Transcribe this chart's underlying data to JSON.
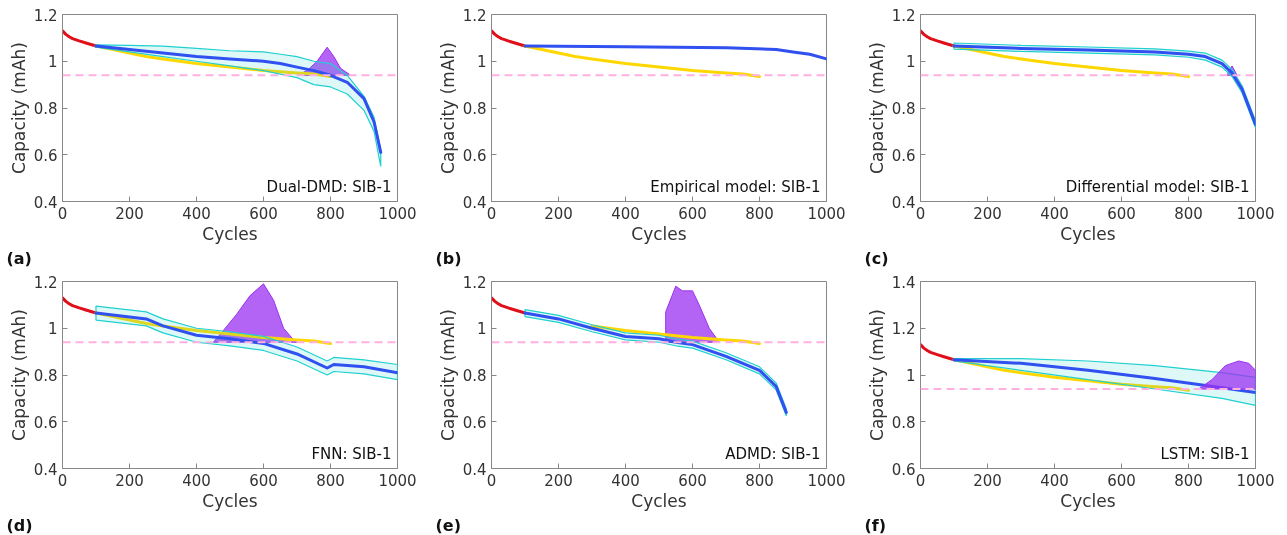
{
  "chart_data": [
    {
      "type": "line",
      "xlabel": "Cycles",
      "ylabel": "Capacity (mAh)",
      "xlim": [
        0,
        1000
      ],
      "ylim": [
        0.4,
        1.2
      ],
      "xticks": [
        0,
        200,
        400,
        600,
        800,
        1000
      ],
      "yticks": [
        0.4,
        0.6,
        0.8,
        1,
        1.2
      ],
      "annotations": [
        "Dual-DMD: SIB-1",
        "(a)"
      ],
      "ref_lines": [
        {
          "axis": "y",
          "value": 0.94,
          "color": "#ffb0e0",
          "line_style": "dashed"
        }
      ],
      "series": [
        {
          "type": "area",
          "color": "#9b30f0",
          "x": [
            700,
            730,
            760,
            790,
            810,
            830,
            860
          ],
          "values": [
            0.94,
            0.96,
            1.0,
            1.06,
            1.02,
            0.97,
            0.94
          ]
        },
        {
          "color": "#e0101a",
          "x": [
            0,
            10,
            20,
            30,
            50,
            70,
            100
          ],
          "values": [
            1.13,
            1.115,
            1.105,
            1.097,
            1.087,
            1.078,
            1.065
          ]
        },
        {
          "color": "#ffd700",
          "x": [
            100,
            150,
            200,
            250,
            300,
            400,
            500,
            600,
            650,
            700,
            750,
            800
          ],
          "values": [
            1.065,
            1.05,
            1.035,
            1.02,
            1.01,
            0.99,
            0.975,
            0.96,
            0.955,
            0.95,
            0.945,
            0.935
          ]
        },
        {
          "color": "#3050f0",
          "x": [
            100,
            200,
            300,
            400,
            500,
            600,
            650,
            700,
            750,
            800,
            850,
            900,
            930,
            950
          ],
          "values": [
            1.065,
            1.05,
            1.035,
            1.02,
            1.01,
            1.0,
            0.99,
            0.975,
            0.96,
            0.94,
            0.91,
            0.84,
            0.74,
            0.61
          ],
          "lower": [
            1.06,
            1.04,
            1.02,
            1.0,
            0.98,
            0.96,
            0.945,
            0.93,
            0.9,
            0.89,
            0.86,
            0.79,
            0.7,
            0.55
          ],
          "upper": [
            1.07,
            1.068,
            1.065,
            1.055,
            1.045,
            1.04,
            1.03,
            1.02,
            1.0,
            0.99,
            0.94,
            0.85,
            0.76,
            0.62
          ]
        }
      ]
    },
    {
      "type": "line",
      "xlabel": "Cycles",
      "ylabel": "Capacity (mAh)",
      "xlim": [
        0,
        1000
      ],
      "ylim": [
        0.4,
        1.2
      ],
      "xticks": [
        0,
        200,
        400,
        600,
        800,
        1000
      ],
      "yticks": [
        0.4,
        0.6,
        0.8,
        1,
        1.2
      ],
      "annotations": [
        "Empirical model: SIB-1",
        "(b)"
      ],
      "ref_lines": [
        {
          "axis": "y",
          "value": 0.94,
          "color": "#ffb0e0",
          "line_style": "dashed"
        }
      ],
      "series": [
        {
          "color": "#e0101a",
          "x": [
            0,
            10,
            20,
            30,
            50,
            70,
            100
          ],
          "values": [
            1.13,
            1.115,
            1.105,
            1.097,
            1.087,
            1.078,
            1.065
          ]
        },
        {
          "color": "#ffd700",
          "x": [
            100,
            150,
            200,
            250,
            300,
            400,
            500,
            600,
            650,
            700,
            750,
            800
          ],
          "values": [
            1.065,
            1.05,
            1.035,
            1.02,
            1.01,
            0.99,
            0.975,
            0.96,
            0.955,
            0.95,
            0.945,
            0.935
          ]
        },
        {
          "color": "#3050f0",
          "x": [
            100,
            400,
            700,
            850,
            900,
            950,
            1000
          ],
          "values": [
            1.065,
            1.062,
            1.058,
            1.05,
            1.04,
            1.03,
            1.01
          ]
        }
      ]
    },
    {
      "type": "line",
      "xlabel": "Cycles",
      "ylabel": "Capacity (mAh)",
      "xlim": [
        0,
        1000
      ],
      "ylim": [
        0.4,
        1.2
      ],
      "xticks": [
        0,
        200,
        400,
        600,
        800,
        1000
      ],
      "yticks": [
        0.4,
        0.6,
        0.8,
        1,
        1.2
      ],
      "annotations": [
        "Differential model: SIB-1",
        "(c)"
      ],
      "ref_lines": [
        {
          "axis": "y",
          "value": 0.94,
          "color": "#ffb0e0",
          "line_style": "dashed"
        }
      ],
      "series": [
        {
          "type": "area",
          "color": "#9b30f0",
          "x": [
            915,
            930,
            945
          ],
          "values": [
            0.94,
            0.98,
            0.94
          ]
        },
        {
          "color": "#e0101a",
          "x": [
            0,
            10,
            20,
            30,
            50,
            70,
            100
          ],
          "values": [
            1.13,
            1.115,
            1.105,
            1.097,
            1.087,
            1.078,
            1.065
          ]
        },
        {
          "color": "#ffd700",
          "x": [
            100,
            150,
            200,
            250,
            300,
            400,
            500,
            600,
            650,
            700,
            750,
            800
          ],
          "values": [
            1.065,
            1.05,
            1.035,
            1.02,
            1.01,
            0.99,
            0.975,
            0.96,
            0.955,
            0.95,
            0.945,
            0.935
          ]
        },
        {
          "color": "#3050f0",
          "x": [
            100,
            300,
            500,
            700,
            800,
            850,
            900,
            930,
            960,
            1000
          ],
          "values": [
            1.065,
            1.055,
            1.048,
            1.04,
            1.03,
            1.02,
            0.99,
            0.95,
            0.88,
            0.73
          ],
          "lower": [
            1.052,
            1.042,
            1.035,
            1.027,
            1.017,
            1.005,
            0.975,
            0.935,
            0.865,
            0.715
          ],
          "upper": [
            1.078,
            1.068,
            1.061,
            1.053,
            1.043,
            1.035,
            1.005,
            0.965,
            0.895,
            0.745
          ]
        }
      ]
    },
    {
      "type": "line",
      "xlabel": "Cycles",
      "ylabel": "Capacity (mAh)",
      "xlim": [
        0,
        1000
      ],
      "ylim": [
        0.4,
        1.2
      ],
      "xticks": [
        0,
        200,
        400,
        600,
        800,
        1000
      ],
      "yticks": [
        0.4,
        0.6,
        0.8,
        1,
        1.2
      ],
      "annotations": [
        "FNN: SIB-1",
        "(d)"
      ],
      "ref_lines": [
        {
          "axis": "y",
          "value": 0.94,
          "color": "#ffb0e0",
          "line_style": "dashed"
        }
      ],
      "series": [
        {
          "type": "area",
          "color": "#9b30f0",
          "x": [
            450,
            480,
            520,
            560,
            600,
            630,
            660,
            690,
            700
          ],
          "values": [
            0.94,
            0.99,
            1.06,
            1.14,
            1.19,
            1.12,
            1.0,
            0.95,
            0.94
          ]
        },
        {
          "color": "#e0101a",
          "x": [
            0,
            10,
            20,
            30,
            50,
            70,
            100
          ],
          "values": [
            1.13,
            1.115,
            1.105,
            1.097,
            1.087,
            1.078,
            1.065
          ]
        },
        {
          "color": "#ffd700",
          "x": [
            100,
            150,
            200,
            250,
            300,
            400,
            500,
            600,
            650,
            700,
            750,
            800
          ],
          "values": [
            1.065,
            1.05,
            1.035,
            1.02,
            1.01,
            0.99,
            0.975,
            0.96,
            0.955,
            0.95,
            0.945,
            0.935
          ]
        },
        {
          "color": "#3050f0",
          "x": [
            100,
            250,
            300,
            400,
            500,
            600,
            700,
            790,
            810,
            900,
            1000
          ],
          "values": [
            1.065,
            1.04,
            1.01,
            0.97,
            0.955,
            0.935,
            0.89,
            0.83,
            0.845,
            0.835,
            0.81
          ],
          "lower": [
            1.035,
            1.01,
            0.98,
            0.94,
            0.925,
            0.905,
            0.86,
            0.8,
            0.815,
            0.805,
            0.78
          ],
          "upper": [
            1.095,
            1.07,
            1.04,
            1.0,
            0.985,
            0.965,
            0.92,
            0.86,
            0.875,
            0.865,
            0.845
          ]
        }
      ]
    },
    {
      "type": "line",
      "xlabel": "Cycles",
      "ylabel": "Capacity (mAh)",
      "xlim": [
        0,
        1000
      ],
      "ylim": [
        0.4,
        1.2
      ],
      "xticks": [
        0,
        200,
        400,
        600,
        800,
        1000
      ],
      "yticks": [
        0.4,
        0.6,
        0.8,
        1,
        1.2
      ],
      "annotations": [
        "ADMD: SIB-1",
        "(e)"
      ],
      "ref_lines": [
        {
          "axis": "y",
          "value": 0.94,
          "color": "#ffb0e0",
          "line_style": "dashed"
        }
      ],
      "series": [
        {
          "type": "area",
          "color": "#9b30f0",
          "x": [
            520,
            520,
            550,
            570,
            600,
            620,
            650,
            680
          ],
          "values": [
            0.94,
            1.07,
            1.18,
            1.16,
            1.16,
            1.1,
            1.0,
            0.94
          ]
        },
        {
          "color": "#e0101a",
          "x": [
            0,
            10,
            20,
            30,
            50,
            70,
            100
          ],
          "values": [
            1.13,
            1.115,
            1.105,
            1.097,
            1.087,
            1.078,
            1.065
          ]
        },
        {
          "color": "#ffd700",
          "x": [
            300,
            400,
            500,
            600,
            650,
            700,
            750,
            800
          ],
          "values": [
            1.01,
            0.99,
            0.975,
            0.96,
            0.955,
            0.95,
            0.945,
            0.935
          ]
        },
        {
          "color": "#3050f0",
          "x": [
            100,
            200,
            300,
            400,
            500,
            550,
            600,
            700,
            800,
            850,
            880
          ],
          "values": [
            1.065,
            1.04,
            1.0,
            0.965,
            0.955,
            0.94,
            0.93,
            0.88,
            0.82,
            0.75,
            0.64
          ],
          "lower": [
            1.05,
            1.025,
            0.985,
            0.95,
            0.94,
            0.925,
            0.915,
            0.865,
            0.805,
            0.735,
            0.625
          ],
          "upper": [
            1.08,
            1.055,
            1.015,
            0.98,
            0.97,
            0.955,
            0.945,
            0.895,
            0.835,
            0.765,
            0.655
          ]
        }
      ]
    },
    {
      "type": "line",
      "xlabel": "Cycles",
      "ylabel": "Capacity (mAh)",
      "xlim": [
        0,
        1000
      ],
      "ylim": [
        0.6,
        1.4
      ],
      "xticks": [
        0,
        200,
        400,
        600,
        800,
        1000
      ],
      "yticks": [
        0.6,
        0.8,
        1,
        1.2,
        1.4
      ],
      "annotations": [
        "LSTM: SIB-1",
        "(f)"
      ],
      "ref_lines": [
        {
          "axis": "y",
          "value": 0.94,
          "color": "#ffb0e0",
          "line_style": "dashed"
        }
      ],
      "series": [
        {
          "color": "#e0101a",
          "x": [
            0,
            10,
            20,
            30,
            50,
            70,
            100
          ],
          "values": [
            1.13,
            1.115,
            1.105,
            1.097,
            1.087,
            1.078,
            1.065
          ]
        },
        {
          "color": "#ffd700",
          "x": [
            100,
            150,
            200,
            250,
            300,
            400,
            500,
            600,
            650,
            700,
            750,
            800
          ],
          "values": [
            1.065,
            1.05,
            1.035,
            1.02,
            1.01,
            0.99,
            0.975,
            0.96,
            0.955,
            0.95,
            0.945,
            0.935
          ]
        },
        {
          "color": "#3050f0",
          "x": [
            100,
            300,
            500,
            700,
            900,
            1000
          ],
          "values": [
            1.065,
            1.05,
            1.02,
            0.985,
            0.945,
            0.925
          ],
          "lower": [
            1.06,
            1.02,
            0.98,
            0.94,
            0.9,
            0.87
          ],
          "upper": [
            1.07,
            1.07,
            1.06,
            1.04,
            1.01,
            0.99
          ]
        },
        {
          "type": "area",
          "color": "#9b30f0",
          "x": [
            830,
            870,
            910,
            950,
            980,
            1000
          ],
          "values": [
            0.94,
            0.98,
            1.04,
            1.06,
            1.05,
            1.02
          ]
        }
      ]
    }
  ]
}
